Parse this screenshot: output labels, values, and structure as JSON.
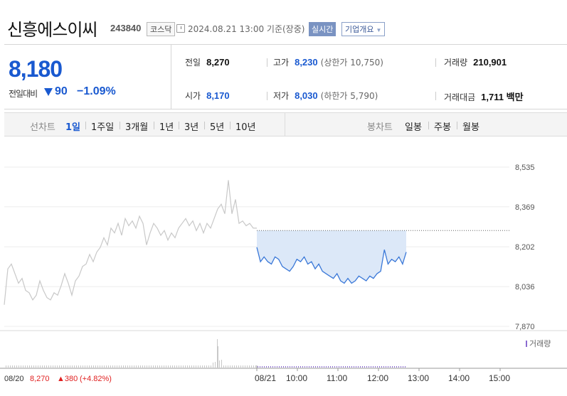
{
  "header": {
    "stock_name": "신흥에스이씨",
    "stock_code": "243840",
    "market": "코스닥",
    "datetime": "2024.08.21 13:00 기준(장중)",
    "realtime": "실시간",
    "company_overview": "기업개요"
  },
  "summary": {
    "price": "8,180",
    "change_label": "전일대비",
    "change": "90",
    "change_rate": "−1.09%",
    "prev_close_label": "전일",
    "prev_close": "8,270",
    "high_label": "고가",
    "high": "8,230",
    "upper_limit": "(상한가 10,750)",
    "volume_label": "거래량",
    "volume": "210,901",
    "open_label": "시가",
    "open": "8,170",
    "low_label": "저가",
    "low": "8,030",
    "lower_limit": "(하한가 5,790)",
    "amount_label": "거래대금",
    "amount": "1,711",
    "amount_unit": "백만"
  },
  "period_bar": {
    "line_chart_label": "선차트",
    "periods": [
      "1일",
      "1주일",
      "3개월",
      "1년",
      "3년",
      "5년",
      "10년"
    ],
    "active": "1일",
    "candle_chart_label": "봉차트",
    "candle_periods": [
      "일봉",
      "주봉",
      "월봉"
    ]
  },
  "colors": {
    "accent_blue": "#1959d0",
    "up_red": "#e02020",
    "line_today": "#3a78d8",
    "line_prev": "#c8c8c8",
    "fill_today": "#dce8f8"
  },
  "chart_data": {
    "type": "line",
    "y_ticks": [
      "8,535",
      "8,369",
      "8,202",
      "8,036",
      "7,870"
    ],
    "ylim": [
      7870,
      8535
    ],
    "prev_close": 8270,
    "x_ticks": [
      "08/21",
      "10:00",
      "11:00",
      "12:00",
      "13:00",
      "14:00",
      "15:00"
    ],
    "prev_day_label": "08/20",
    "prev_day_close": "8,270",
    "prev_day_change": "▲380",
    "prev_day_rate": "(+4.82%)",
    "volume_label": "거래량",
    "series": [
      {
        "values": [
          7960,
          8110,
          8130,
          8090,
          8050,
          8070,
          8020,
          8010,
          7980,
          8000,
          8060,
          8020,
          7990,
          7980,
          8010,
          8000,
          8040,
          8090,
          8050,
          8000,
          8060,
          8080,
          8120,
          8130,
          8170,
          8140,
          8180,
          8200,
          8240,
          8210,
          8280,
          8260,
          8300,
          8250,
          8320,
          8290,
          8310,
          8280,
          8330,
          8300,
          8210,
          8260,
          8300,
          8280,
          8250,
          8270,
          8230,
          8260,
          8240,
          8280,
          8300,
          8320,
          8290,
          8310,
          8270,
          8300,
          8260,
          8300,
          8280,
          8320,
          8360,
          8380,
          8340,
          8480,
          8340,
          8400,
          8300,
          8310,
          8290,
          8300,
          8280,
          8280
        ]
      },
      {
        "values": [
          8200,
          8140,
          8160,
          8140,
          8130,
          8160,
          8150,
          8120,
          8110,
          8100,
          8120,
          8150,
          8140,
          8160,
          8130,
          8140,
          8110,
          8130,
          8100,
          8090,
          8080,
          8070,
          8090,
          8060,
          8050,
          8070,
          8050,
          8060,
          8080,
          8070,
          8060,
          8080,
          8070,
          8090,
          8100,
          8190,
          8130,
          8150,
          8140,
          8160,
          8130,
          8180
        ]
      }
    ]
  }
}
